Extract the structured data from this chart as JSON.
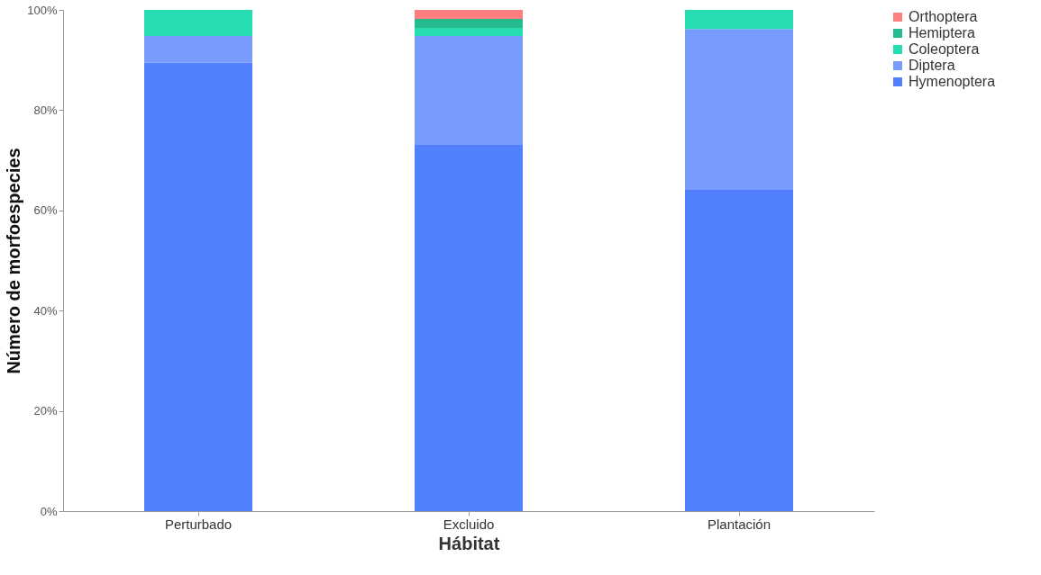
{
  "chart_data": {
    "type": "bar",
    "stacked": true,
    "xlabel": "Hábitat",
    "ylabel": "Número de morfoespecies",
    "categories": [
      "Perturbado",
      "Excluido",
      "Plantación"
    ],
    "series": [
      {
        "name": "Hymenoptera",
        "color": "#517ffe",
        "values": [
          89.5,
          73.2,
          64.1
        ]
      },
      {
        "name": "Diptera",
        "color": "#789bfe",
        "values": [
          5.3,
          21.6,
          32.1
        ]
      },
      {
        "name": "Coleoptera",
        "color": "#25ddb0",
        "values": [
          5.2,
          1.6,
          3.8
        ]
      },
      {
        "name": "Hemiptera",
        "color": "#25bb8f",
        "values": [
          0,
          1.8,
          0
        ]
      },
      {
        "name": "Orthoptera",
        "color": "#fe7f7f",
        "values": [
          0,
          1.8,
          0
        ]
      }
    ],
    "ylim": [
      0,
      100
    ],
    "yticks": [
      {
        "value": 0,
        "label": "0%"
      },
      {
        "value": 20,
        "label": "20%"
      },
      {
        "value": 40,
        "label": "40%"
      },
      {
        "value": 60,
        "label": "60%"
      },
      {
        "value": 80,
        "label": "80%"
      },
      {
        "value": 100,
        "label": "100%"
      }
    ],
    "grid": false,
    "legend": "right"
  }
}
